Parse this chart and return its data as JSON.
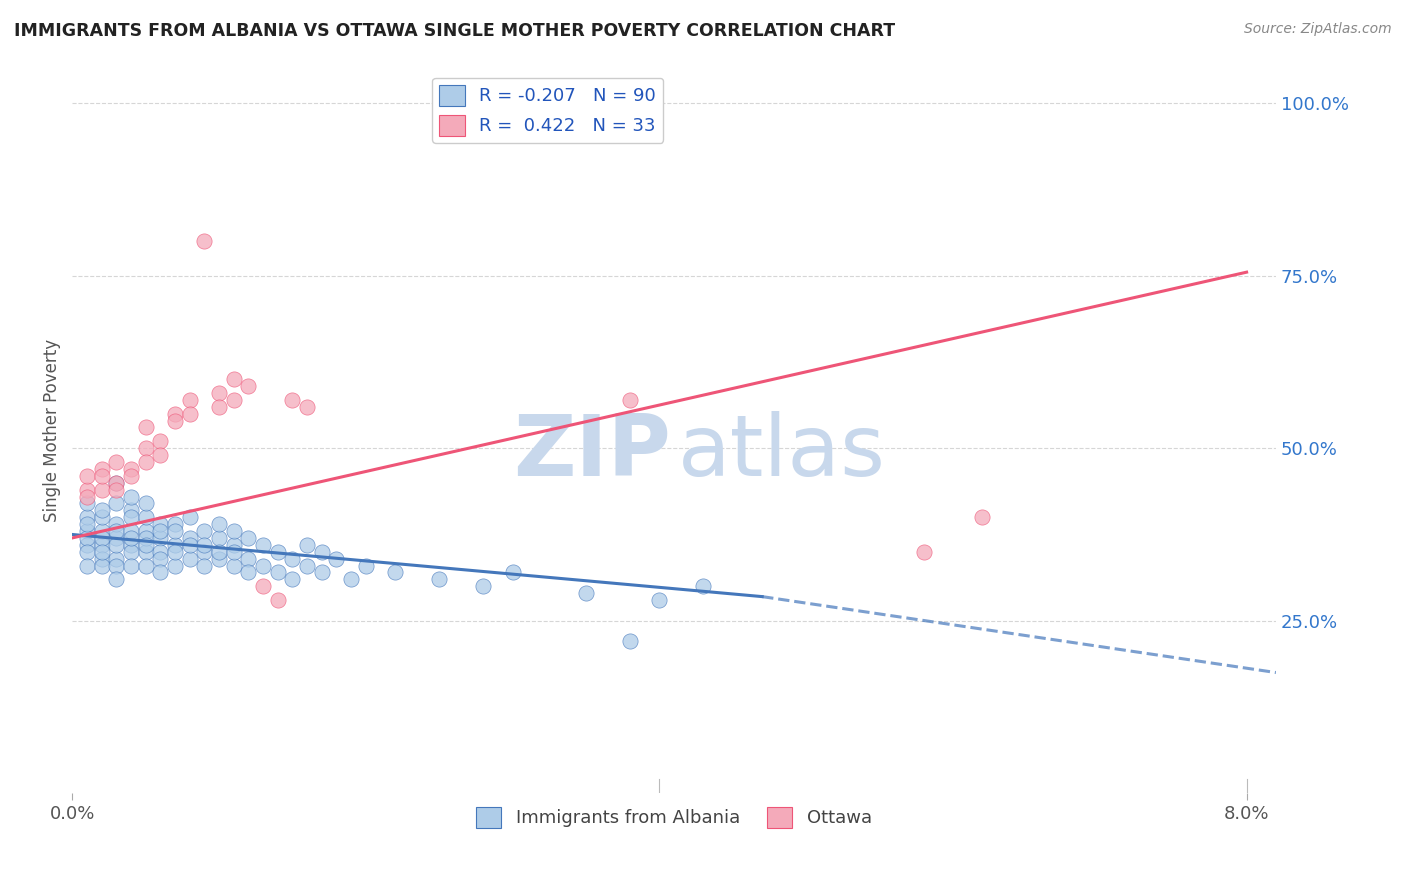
{
  "title": "IMMIGRANTS FROM ALBANIA VS OTTAWA SINGLE MOTHER POVERTY CORRELATION CHART",
  "source": "Source: ZipAtlas.com",
  "ylabel": "Single Mother Poverty",
  "legend_entries": [
    {
      "label": "Immigrants from Albania",
      "R": "-0.207",
      "N": "90",
      "color": "#aec6e8"
    },
    {
      "label": "Ottawa",
      "R": "0.422",
      "N": "33",
      "color": "#f4b8c1"
    }
  ],
  "blue_scatter": [
    [
      0.001,
      0.38
    ],
    [
      0.001,
      0.36
    ],
    [
      0.001,
      0.4
    ],
    [
      0.001,
      0.37
    ],
    [
      0.001,
      0.35
    ],
    [
      0.001,
      0.33
    ],
    [
      0.001,
      0.42
    ],
    [
      0.001,
      0.39
    ],
    [
      0.002,
      0.36
    ],
    [
      0.002,
      0.38
    ],
    [
      0.002,
      0.34
    ],
    [
      0.002,
      0.4
    ],
    [
      0.002,
      0.37
    ],
    [
      0.002,
      0.33
    ],
    [
      0.002,
      0.41
    ],
    [
      0.002,
      0.35
    ],
    [
      0.003,
      0.37
    ],
    [
      0.003,
      0.39
    ],
    [
      0.003,
      0.34
    ],
    [
      0.003,
      0.36
    ],
    [
      0.003,
      0.42
    ],
    [
      0.003,
      0.38
    ],
    [
      0.003,
      0.33
    ],
    [
      0.003,
      0.45
    ],
    [
      0.003,
      0.31
    ],
    [
      0.004,
      0.36
    ],
    [
      0.004,
      0.38
    ],
    [
      0.004,
      0.41
    ],
    [
      0.004,
      0.35
    ],
    [
      0.004,
      0.33
    ],
    [
      0.004,
      0.43
    ],
    [
      0.004,
      0.4
    ],
    [
      0.004,
      0.37
    ],
    [
      0.005,
      0.38
    ],
    [
      0.005,
      0.35
    ],
    [
      0.005,
      0.33
    ],
    [
      0.005,
      0.4
    ],
    [
      0.005,
      0.37
    ],
    [
      0.005,
      0.42
    ],
    [
      0.005,
      0.36
    ],
    [
      0.006,
      0.37
    ],
    [
      0.006,
      0.35
    ],
    [
      0.006,
      0.39
    ],
    [
      0.006,
      0.34
    ],
    [
      0.006,
      0.38
    ],
    [
      0.006,
      0.32
    ],
    [
      0.007,
      0.36
    ],
    [
      0.007,
      0.39
    ],
    [
      0.007,
      0.33
    ],
    [
      0.007,
      0.38
    ],
    [
      0.007,
      0.35
    ],
    [
      0.008,
      0.37
    ],
    [
      0.008,
      0.34
    ],
    [
      0.008,
      0.4
    ],
    [
      0.008,
      0.36
    ],
    [
      0.009,
      0.35
    ],
    [
      0.009,
      0.38
    ],
    [
      0.009,
      0.33
    ],
    [
      0.009,
      0.36
    ],
    [
      0.01,
      0.37
    ],
    [
      0.01,
      0.34
    ],
    [
      0.01,
      0.39
    ],
    [
      0.01,
      0.35
    ],
    [
      0.011,
      0.36
    ],
    [
      0.011,
      0.33
    ],
    [
      0.011,
      0.38
    ],
    [
      0.011,
      0.35
    ],
    [
      0.012,
      0.37
    ],
    [
      0.012,
      0.34
    ],
    [
      0.012,
      0.32
    ],
    [
      0.013,
      0.36
    ],
    [
      0.013,
      0.33
    ],
    [
      0.014,
      0.35
    ],
    [
      0.014,
      0.32
    ],
    [
      0.015,
      0.34
    ],
    [
      0.015,
      0.31
    ],
    [
      0.016,
      0.33
    ],
    [
      0.016,
      0.36
    ],
    [
      0.017,
      0.32
    ],
    [
      0.017,
      0.35
    ],
    [
      0.018,
      0.34
    ],
    [
      0.019,
      0.31
    ],
    [
      0.02,
      0.33
    ],
    [
      0.022,
      0.32
    ],
    [
      0.025,
      0.31
    ],
    [
      0.028,
      0.3
    ],
    [
      0.03,
      0.32
    ],
    [
      0.035,
      0.29
    ],
    [
      0.038,
      0.22
    ],
    [
      0.04,
      0.28
    ],
    [
      0.043,
      0.3
    ]
  ],
  "pink_scatter": [
    [
      0.001,
      0.44
    ],
    [
      0.001,
      0.46
    ],
    [
      0.001,
      0.43
    ],
    [
      0.002,
      0.47
    ],
    [
      0.002,
      0.44
    ],
    [
      0.002,
      0.46
    ],
    [
      0.003,
      0.45
    ],
    [
      0.003,
      0.48
    ],
    [
      0.003,
      0.44
    ],
    [
      0.004,
      0.47
    ],
    [
      0.004,
      0.46
    ],
    [
      0.005,
      0.5
    ],
    [
      0.005,
      0.53
    ],
    [
      0.005,
      0.48
    ],
    [
      0.006,
      0.51
    ],
    [
      0.006,
      0.49
    ],
    [
      0.007,
      0.55
    ],
    [
      0.007,
      0.54
    ],
    [
      0.008,
      0.57
    ],
    [
      0.008,
      0.55
    ],
    [
      0.009,
      0.8
    ],
    [
      0.01,
      0.58
    ],
    [
      0.01,
      0.56
    ],
    [
      0.011,
      0.6
    ],
    [
      0.011,
      0.57
    ],
    [
      0.012,
      0.59
    ],
    [
      0.013,
      0.3
    ],
    [
      0.014,
      0.28
    ],
    [
      0.015,
      0.57
    ],
    [
      0.016,
      0.56
    ],
    [
      0.038,
      0.57
    ],
    [
      0.058,
      0.35
    ],
    [
      0.062,
      0.4
    ]
  ],
  "blue_line_solid": {
    "x0": 0.0,
    "y0": 0.375,
    "x1": 0.047,
    "y1": 0.285
  },
  "blue_line_dash": {
    "x0": 0.047,
    "y0": 0.285,
    "x1": 0.082,
    "y1": 0.175
  },
  "pink_line": {
    "x0": 0.0,
    "y0": 0.37,
    "x1": 0.08,
    "y1": 0.755
  },
  "xlim": [
    0.0,
    0.082
  ],
  "ylim": [
    0.0,
    1.05
  ],
  "ytick_positions": [
    0.25,
    0.5,
    0.75,
    1.0
  ],
  "ytick_labels": [
    "25.0%",
    "50.0%",
    "75.0%",
    "100.0%"
  ],
  "xtick_positions": [
    0.0,
    0.08
  ],
  "xtick_labels": [
    "0.0%",
    "8.0%"
  ],
  "blue_scatter_color": "#aecce8",
  "pink_scatter_color": "#f4aaba",
  "line_blue": "#4477bb",
  "line_pink": "#ee5577",
  "watermark_color": "#c8d8ec",
  "background_color": "#ffffff",
  "grid_color": "#cccccc"
}
